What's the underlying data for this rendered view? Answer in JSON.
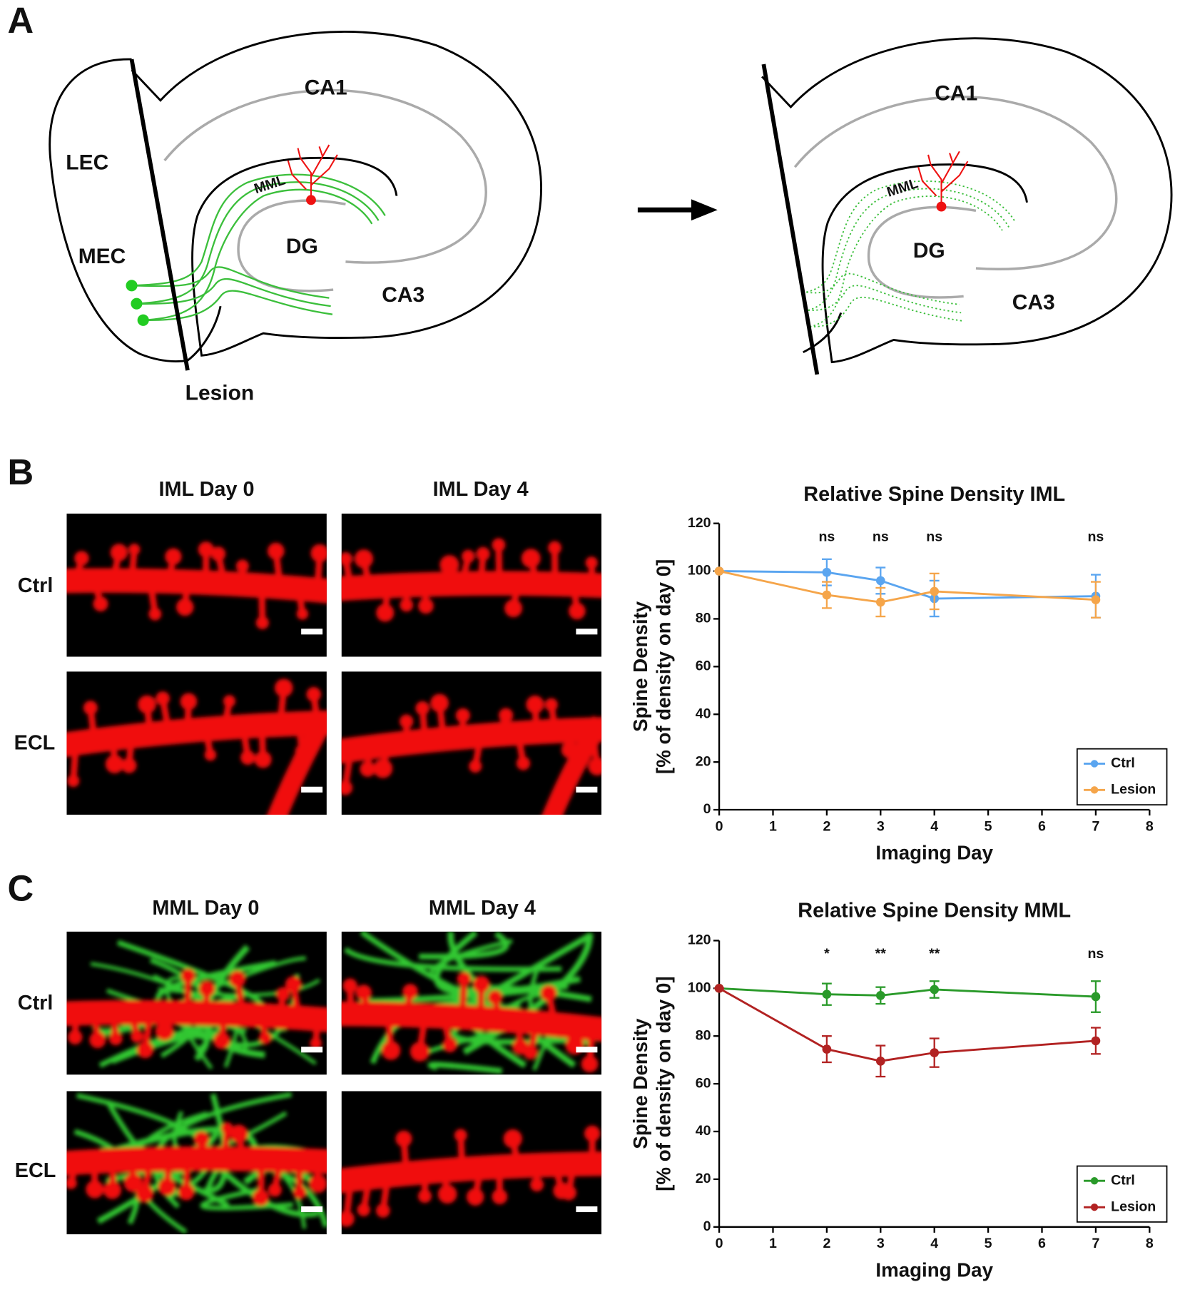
{
  "panel_labels": [
    "A",
    "B",
    "C"
  ],
  "diagram": {
    "left": {
      "lec": "LEC",
      "mec": "MEC",
      "ca1": "CA1",
      "dg": "DG",
      "ca3": "CA3",
      "mml": "MML",
      "lesion": "Lesion"
    },
    "right": {
      "ca1": "CA1",
      "dg": "DG",
      "ca3": "CA3",
      "mml": "MML"
    }
  },
  "micrographs": [
    {
      "columns": [
        "IML Day 0",
        "IML Day 4"
      ],
      "rows": [
        "Ctrl",
        "ECL"
      ]
    },
    {
      "columns": [
        "MML Day 0",
        "MML Day 4"
      ],
      "rows": [
        "Ctrl",
        "ECL"
      ]
    }
  ],
  "chart_data": [
    {
      "type": "line",
      "title": "Relative Spine Density IML",
      "xlabel": "Imaging Day",
      "ylabel": [
        "Spine Density",
        "[% of density on day 0]"
      ],
      "x": [
        0,
        2,
        3,
        4,
        7
      ],
      "xlim": [
        0,
        8
      ],
      "xticks": [
        0,
        1,
        2,
        3,
        4,
        5,
        6,
        7,
        8
      ],
      "ylim": [
        0,
        120
      ],
      "yticks": [
        0,
        20,
        40,
        60,
        80,
        100,
        120
      ],
      "legend": "lower right",
      "annotations": [
        {
          "x": 2,
          "text": "ns"
        },
        {
          "x": 3,
          "text": "ns"
        },
        {
          "x": 4,
          "text": "ns"
        },
        {
          "x": 7,
          "text": "ns"
        }
      ],
      "series": [
        {
          "name": "Ctrl",
          "color": "#5aa5f0",
          "values": [
            100,
            99.5,
            96,
            88.5,
            89.5
          ],
          "errors": [
            0,
            5.5,
            5.5,
            7.5,
            9
          ]
        },
        {
          "name": "Lesion",
          "color": "#f5a54a",
          "values": [
            100,
            90,
            87,
            91.5,
            88
          ],
          "errors": [
            0,
            5.5,
            6,
            7.5,
            7.5
          ]
        }
      ]
    },
    {
      "type": "line",
      "title": "Relative Spine Density MML",
      "xlabel": "Imaging Day",
      "ylabel": [
        "Spine Density",
        "[% of density on day 0]"
      ],
      "x": [
        0,
        2,
        3,
        4,
        7
      ],
      "xlim": [
        0,
        8
      ],
      "xticks": [
        0,
        1,
        2,
        3,
        4,
        5,
        6,
        7,
        8
      ],
      "ylim": [
        0,
        120
      ],
      "yticks": [
        0,
        20,
        40,
        60,
        80,
        100,
        120
      ],
      "legend": "lower right",
      "annotations": [
        {
          "x": 2,
          "text": "*"
        },
        {
          "x": 3,
          "text": "**"
        },
        {
          "x": 4,
          "text": "**"
        },
        {
          "x": 7,
          "text": "ns"
        }
      ],
      "series": [
        {
          "name": "Ctrl",
          "color": "#2a9a2a",
          "values": [
            100,
            97.5,
            97,
            99.5,
            96.5
          ],
          "errors": [
            0,
            4.5,
            3.5,
            3.5,
            6.5
          ]
        },
        {
          "name": "Lesion",
          "color": "#b22222",
          "values": [
            100,
            74.5,
            69.5,
            73,
            78
          ],
          "errors": [
            0,
            5.5,
            6.5,
            6,
            5.5
          ]
        }
      ]
    }
  ]
}
